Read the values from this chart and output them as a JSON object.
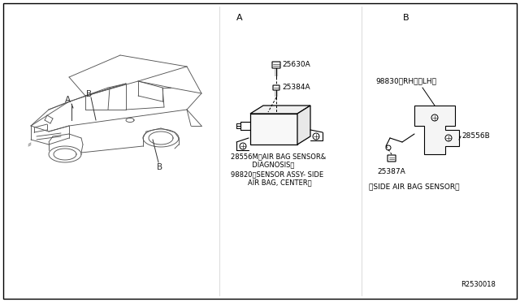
{
  "bg_color": "#ffffff",
  "line_color": "#000000",
  "text_color": "#000000",
  "fig_width": 6.4,
  "fig_height": 3.72,
  "dpi": 100,
  "label_A": "A",
  "label_B": "B",
  "part_25630A": "25630A",
  "part_25384A": "25384A",
  "part_28556M_line1": "28556M〈AIR BAG SENSOR&",
  "part_28556M_line2": "        DIAGNOSIS〉",
  "part_98820_line1": "98820〈SENSOR ASSY- SIDE",
  "part_98820_line2": "      AIR BAG, CENTER〉",
  "part_98830": "98830〈RH〉〈LH〉",
  "part_28556B": "28556B",
  "part_25387A": "25387A",
  "side_sensor_label": "〈SIDE AIR BAG SENSOR〉",
  "ref_code": "R2530018",
  "car_label_A": "A",
  "car_label_B_top": "B",
  "car_label_B_bot": "B"
}
